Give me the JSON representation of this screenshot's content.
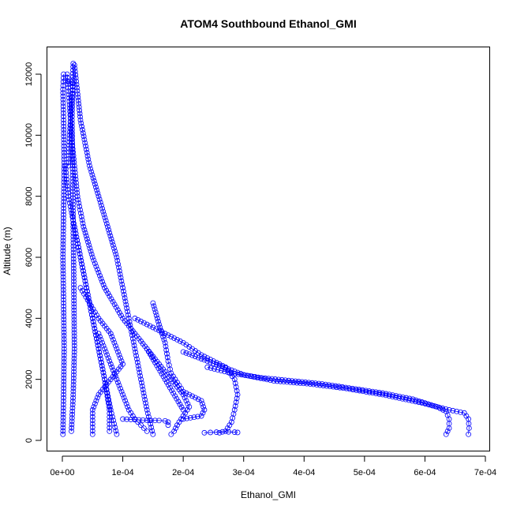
{
  "chart_data": {
    "type": "scatter",
    "title": "ATOM4 Southbound Ethanol_GMI",
    "xlabel": "Ethanol_GMI",
    "ylabel": "Altitude (m)",
    "xlim": [
      0,
      0.0007
    ],
    "ylim": [
      0,
      12500
    ],
    "x_ticks": [
      0,
      0.0001,
      0.0002,
      0.0003,
      0.0004,
      0.0005,
      0.0006,
      0.0007
    ],
    "x_tick_labels": [
      "0e+00",
      "1e-04",
      "2e-04",
      "3e-04",
      "4e-04",
      "5e-04",
      "6e-04",
      "7e-04"
    ],
    "y_ticks": [
      0,
      2000,
      4000,
      6000,
      8000,
      10000,
      12000
    ],
    "y_tick_labels": [
      "0",
      "2000",
      "4000",
      "6000",
      "8000",
      "10000",
      "12000"
    ],
    "grid": false,
    "marker": "open-circle",
    "color": "#0000ff",
    "series": [
      {
        "x": [
          1e-06,
          2e-06,
          3e-06,
          2e-06,
          1e-06,
          2e-06,
          3e-06,
          2e-06,
          1e-06,
          2e-06
        ],
        "y": [
          200,
          1500,
          3000,
          4500,
          6000,
          7500,
          9000,
          10500,
          11500,
          12000
        ]
      },
      {
        "x": [
          1.5e-05,
          1.8e-05,
          2e-05,
          1.9e-05,
          1.8e-05,
          1.7e-05,
          1.6e-05,
          1.7e-05,
          1.8e-05
        ],
        "y": [
          300,
          1500,
          3000,
          5000,
          7000,
          9000,
          10500,
          11700,
          12350
        ]
      },
      {
        "x": [
          8e-06,
          1.2e-05,
          1.5e-05,
          2e-05,
          2.5e-05,
          3.5e-05,
          5e-05,
          7e-05,
          0.0001,
          0.00014,
          0.00017,
          0.0002
        ],
        "y": [
          12000,
          11000,
          10000,
          9000,
          8000,
          7000,
          6000,
          5000,
          4000,
          3000,
          2000,
          1000
        ]
      },
      {
        "x": [
          2e-05,
          3e-05,
          4.5e-05,
          6e-05,
          7.5e-05,
          9e-05,
          0.0001,
          0.00011,
          0.00012,
          0.00013,
          0.00014,
          0.00015
        ],
        "y": [
          12300,
          10500,
          9000,
          8000,
          7000,
          6000,
          5000,
          4000,
          3000,
          2000,
          1000,
          200
        ]
      },
      {
        "x": [
          5e-06,
          1e-05,
          2e-05,
          3e-05,
          4e-05,
          5e-05,
          6e-05,
          7e-05,
          8e-05,
          9e-05
        ],
        "y": [
          9000,
          8000,
          7000,
          6000,
          5000,
          4000,
          3000,
          2000,
          1000,
          200
        ]
      },
      {
        "x": [
          3e-05,
          4.5e-05,
          6e-05,
          8e-05,
          9e-05,
          0.0001,
          8e-05,
          6e-05,
          5e-05,
          5e-05
        ],
        "y": [
          5000,
          4500,
          4000,
          3500,
          3000,
          2500,
          2000,
          1500,
          1000,
          200
        ]
      },
      {
        "x": [
          0.00012,
          0.00015,
          0.0002,
          0.00023,
          0.00027,
          0.000285,
          0.00029,
          0.000285,
          0.00028,
          0.00027,
          0.00026
        ],
        "y": [
          4000,
          3700,
          3200,
          2800,
          2400,
          2000,
          1500,
          1000,
          600,
          300,
          250
        ]
      },
      {
        "x": [
          0.00024,
          0.00028,
          0.00033,
          0.00038,
          0.00043,
          0.00048,
          0.00053,
          0.00058,
          0.00062,
          0.000635,
          0.00064,
          0.00064,
          0.000635
        ],
        "y": [
          2400,
          2200,
          2050,
          1950,
          1850,
          1700,
          1550,
          1350,
          1100,
          950,
          700,
          400,
          200
        ]
      },
      {
        "x": [
          0.0002,
          0.00026,
          0.0003,
          0.00035,
          0.00041,
          0.00047,
          0.00053,
          0.00059,
          0.00064,
          0.000665,
          0.000672,
          0.000673,
          0.000672
        ],
        "y": [
          2900,
          2450,
          2150,
          1950,
          1850,
          1700,
          1500,
          1250,
          1000,
          900,
          700,
          400,
          200
        ]
      },
      {
        "x": [
          0.00014,
          0.00016,
          0.00018,
          0.0002,
          0.00021,
          0.0002,
          0.00019,
          0.000185,
          0.00018
        ],
        "y": [
          3000,
          2500,
          2000,
          1500,
          1100,
          800,
          500,
          300,
          200
        ]
      },
      {
        "x": [
          6e-05,
          7e-05,
          8e-05,
          9e-05,
          0.0001,
          0.00011,
          0.00012,
          0.00013,
          0.00014
        ],
        "y": [
          3500,
          3000,
          2500,
          2000,
          1500,
          1000,
          700,
          500,
          300
        ]
      },
      {
        "x": [
          2e-05,
          3e-05,
          4e-05,
          5e-05,
          6e-05,
          7e-05,
          7.8e-05,
          7.8e-05
        ],
        "y": [
          7000,
          6000,
          5000,
          4000,
          3000,
          2000,
          1000,
          300
        ]
      },
      {
        "x": [
          0.00015,
          0.00016,
          0.00017,
          0.000175,
          0.00018,
          0.0002,
          0.00023,
          0.000235,
          0.00023,
          0.0002
        ],
        "y": [
          4500,
          3800,
          3200,
          2600,
          2200,
          1600,
          1300,
          1000,
          800,
          700
        ]
      },
      {
        "x": [
          0.0001,
          0.00012,
          0.00014,
          0.00016,
          0.00017,
          0.000175,
          0.000175
        ],
        "y": [
          700,
          680,
          660,
          650,
          640,
          600,
          500
        ]
      },
      {
        "x": [
          0.000235,
          0.000245,
          0.000255,
          0.000265,
          0.000275,
          0.000285,
          0.00029
        ],
        "y": [
          250,
          260,
          270,
          280,
          280,
          270,
          260
        ]
      },
      {
        "x": [
          5e-06,
          1e-05,
          1.5e-05,
          1.8e-05,
          1.5e-05,
          1.2e-05,
          1e-05
        ],
        "y": [
          11800,
          11750,
          11750,
          11700,
          11000,
          10000,
          9000
        ]
      }
    ]
  }
}
